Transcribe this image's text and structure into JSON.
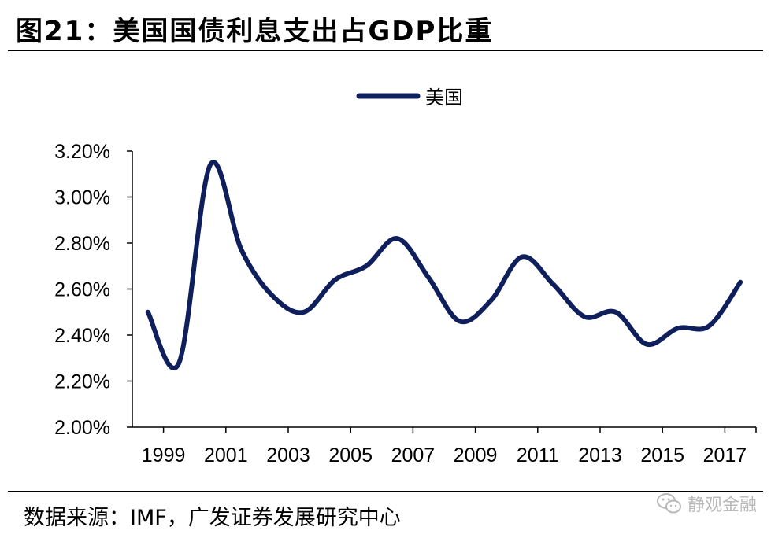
{
  "figure": {
    "title": "图21：美国国债利息支出占GDP比重",
    "source": "数据来源：IMF，广发证券发展研究中心",
    "watermark": "静观金融"
  },
  "colors": {
    "series": "#0f1f5c",
    "axis": "#000000",
    "text": "#000000",
    "watermark": "#b9b9b9"
  },
  "icons": {
    "watermark_icon": "wechat-icon"
  },
  "chart_data": {
    "type": "line",
    "title": "",
    "xlabel": "",
    "ylabel": "",
    "x": [
      1999,
      2000,
      2001,
      2002,
      2003,
      2004,
      2005,
      2006,
      2007,
      2008,
      2009,
      2010,
      2011,
      2012,
      2013,
      2014,
      2015,
      2016,
      2017,
      2018
    ],
    "series": [
      {
        "name": "美国",
        "color": "#0f1f5c",
        "values": [
          2.5,
          2.28,
          3.14,
          2.77,
          2.57,
          2.5,
          2.64,
          2.7,
          2.82,
          2.65,
          2.46,
          2.55,
          2.74,
          2.62,
          2.48,
          2.5,
          2.36,
          2.43,
          2.44,
          2.63
        ]
      }
    ],
    "ylim": [
      2.0,
      3.2
    ],
    "yticks": [
      2.0,
      2.2,
      2.4,
      2.6,
      2.8,
      3.0,
      3.2
    ],
    "ytick_labels": [
      "2.00%",
      "2.20%",
      "2.40%",
      "2.60%",
      "2.80%",
      "3.00%",
      "3.20%"
    ],
    "xtick_labels": [
      "1999",
      "2001",
      "2003",
      "2005",
      "2007",
      "2009",
      "2011",
      "2013",
      "2015",
      "2017"
    ],
    "legend": {
      "position": "top-center"
    },
    "grid": false
  }
}
